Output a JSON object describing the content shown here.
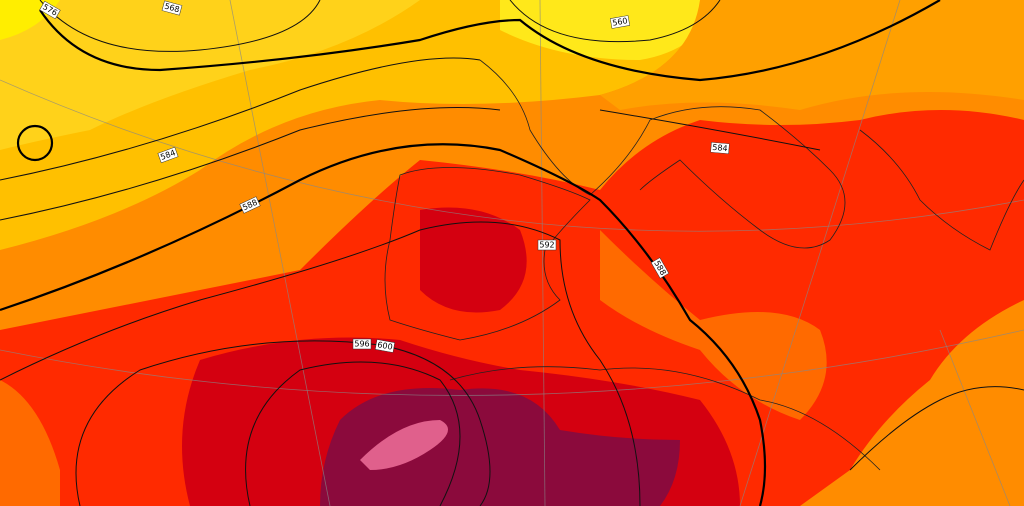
{
  "contour_labels": [
    "576",
    "568",
    "560",
    "584",
    "588",
    "584",
    "592",
    "588",
    "596",
    "600"
  ]
}
